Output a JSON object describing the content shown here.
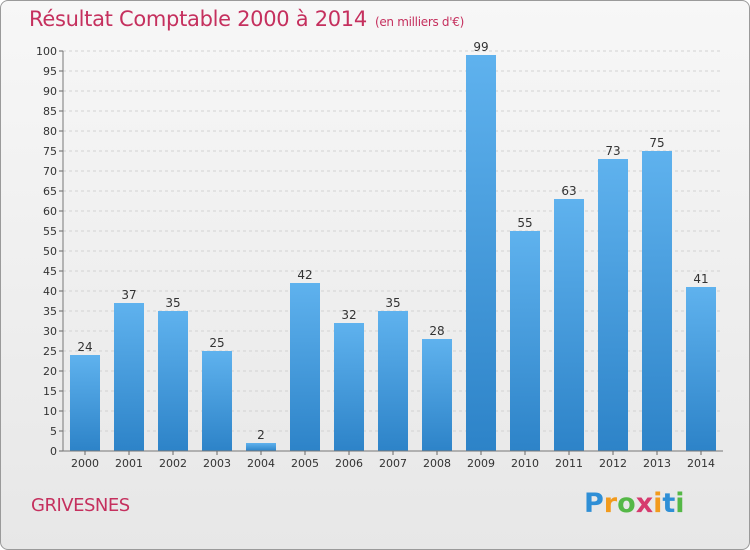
{
  "header": {
    "title": "Résultat Comptable 2000 à 2014",
    "unit": "(en milliers d'€)"
  },
  "place": "GRIVESNES",
  "logo": {
    "text": "Proxiti",
    "letters": [
      {
        "ch": "P",
        "color": "#2f8fd6"
      },
      {
        "ch": "r",
        "color": "#f29a1c"
      },
      {
        "ch": "o",
        "color": "#55b847"
      },
      {
        "ch": "x",
        "color": "#d63a6e"
      },
      {
        "ch": "i",
        "color": "#f29a1c"
      },
      {
        "ch": "t",
        "color": "#2f8fd6"
      },
      {
        "ch": "i",
        "color": "#55b847"
      }
    ]
  },
  "colors": {
    "title": "#c5305e",
    "bar_light": "#5fb2ee",
    "bar_dark": "#2d83c8"
  },
  "chart_data": {
    "type": "bar",
    "title": "Résultat Comptable 2000 à 2014",
    "subtitle": "(en milliers d'€)",
    "xlabel": "",
    "ylabel": "",
    "categories": [
      "2000",
      "2001",
      "2002",
      "2003",
      "2004",
      "2005",
      "2006",
      "2007",
      "2008",
      "2009",
      "2010",
      "2011",
      "2012",
      "2013",
      "2014"
    ],
    "values": [
      24,
      37,
      35,
      25,
      2,
      42,
      32,
      35,
      28,
      99,
      55,
      63,
      73,
      75,
      41
    ],
    "ylim": [
      0,
      100
    ],
    "yticks": [
      0,
      5,
      10,
      15,
      20,
      25,
      30,
      35,
      40,
      45,
      50,
      55,
      60,
      65,
      70,
      75,
      80,
      85,
      90,
      95,
      100
    ],
    "grid": true,
    "legend": "none"
  }
}
